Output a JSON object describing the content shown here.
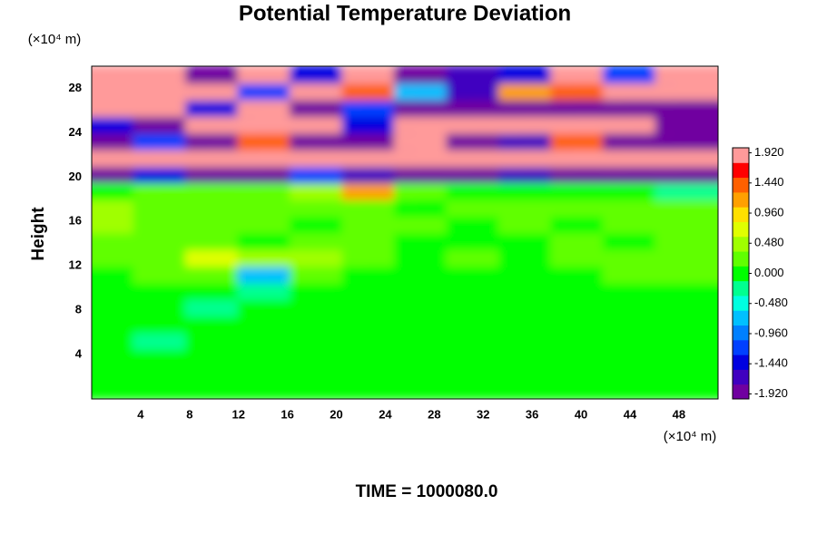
{
  "chart_data": {
    "type": "heatmap",
    "title": "Potential Temperature Deviation",
    "y_unit": "(×10⁴ m)",
    "x_unit": "(×10⁴ m)",
    "ylabel": "Height",
    "footer": "TIME = 1000080.0",
    "xlim": [
      0,
      51.2
    ],
    "ylim": [
      0,
      30
    ],
    "xticks": [
      4,
      8,
      12,
      16,
      20,
      24,
      28,
      32,
      36,
      40,
      44,
      48
    ],
    "yticks": [
      4,
      8,
      12,
      16,
      20,
      24,
      28
    ],
    "x": [
      2.13,
      6.4,
      10.67,
      14.93,
      19.2,
      23.47,
      27.73,
      32,
      36.27,
      40.53,
      44.8,
      49.07
    ],
    "y": [
      0.75,
      2.25,
      3.75,
      5.25,
      6.75,
      8.25,
      9.75,
      11.25,
      12.75,
      14.25,
      15.75,
      17.25,
      18.75,
      20.25,
      21.75,
      23.25,
      24.75,
      26.25,
      27.75,
      29.25
    ],
    "z": [
      [
        0,
        -0.1,
        0,
        0.05,
        0,
        -0.1,
        0,
        0,
        -0.05,
        0,
        0.1,
        0
      ],
      [
        0.05,
        0,
        -0.1,
        0,
        0,
        0,
        -0.1,
        0,
        0,
        0.05,
        0,
        0
      ],
      [
        0,
        0,
        0,
        -0.1,
        0,
        0.05,
        0,
        -0.1,
        0,
        0,
        0,
        0.05
      ],
      [
        0,
        -0.15,
        0,
        0,
        0.05,
        0,
        0,
        0,
        -0.1,
        0,
        0.05,
        0
      ],
      [
        0.05,
        0,
        0,
        -0.1,
        0,
        0,
        0.05,
        0,
        0,
        -0.1,
        0,
        0
      ],
      [
        0,
        0,
        -0.2,
        0,
        0,
        0.1,
        0,
        -0.1,
        0,
        0,
        0,
        0.05
      ],
      [
        0,
        0.05,
        0,
        -0.3,
        0.1,
        0,
        0,
        0,
        0,
        0.05,
        0,
        0
      ],
      [
        0.1,
        0.2,
        0.3,
        -0.6,
        0.2,
        0,
        0.1,
        0,
        0.05,
        0.1,
        0.3,
        0.2
      ],
      [
        0.2,
        0.3,
        0.6,
        0.4,
        0.5,
        0.2,
        0.1,
        0.2,
        0.1,
        0.2,
        0.2,
        0.3
      ],
      [
        0.3,
        0.2,
        0.2,
        0.1,
        0.3,
        0.2,
        0.1,
        -0.1,
        0.1,
        0.2,
        0.1,
        0.2
      ],
      [
        0.4,
        0.3,
        0.2,
        0.2,
        0.1,
        0.2,
        0.3,
        0.1,
        0.2,
        0.1,
        0.2,
        0.3
      ],
      [
        0.5,
        0.3,
        0.2,
        0.3,
        0.2,
        0.2,
        0.1,
        0.2,
        0.3,
        0.2,
        0.2,
        0.2
      ],
      [
        0.1,
        0.2,
        0.3,
        0.2,
        0.5,
        1.2,
        0.3,
        0.1,
        0.1,
        0,
        -0.1,
        -0.2
      ],
      [
        -1.9,
        -1.5,
        -1.9,
        -1.8,
        -1.2,
        -1.6,
        -1.8,
        -1.9,
        -1.7,
        -1.9,
        -1.8,
        -1.9
      ],
      [
        2,
        2,
        1.9,
        2,
        2,
        1.8,
        2,
        1.9,
        2,
        2,
        1.9,
        2
      ],
      [
        -1.9,
        -1.2,
        -1.9,
        1.5,
        -1.9,
        -1.9,
        1.9,
        -1.9,
        -1.6,
        1.5,
        -1.9,
        -1.9
      ],
      [
        -1.5,
        -1.9,
        1.9,
        2,
        1.9,
        -1.5,
        2,
        2,
        2,
        1.9,
        2,
        -1.9
      ],
      [
        2,
        1.9,
        -1.5,
        2,
        -1.9,
        -1.2,
        -1.9,
        -1.9,
        -1.9,
        -1.9,
        -1.9,
        -2
      ],
      [
        2,
        2,
        1.8,
        -1.2,
        1.9,
        1.5,
        -0.8,
        -1.6,
        1.2,
        1.5,
        2,
        1.9
      ],
      [
        2,
        1.9,
        -1.8,
        2,
        -1.5,
        1.8,
        -1.9,
        -1.6,
        -1.4,
        1.8,
        -1.2,
        2
      ]
    ],
    "clim": [
      -2,
      2
    ],
    "colormap": [
      "#7000a0",
      "#4000c0",
      "#0000e0",
      "#0040ff",
      "#0080ff",
      "#00c0ff",
      "#00ffe0",
      "#00ff90",
      "#00ff00",
      "#60ff00",
      "#a0ff00",
      "#e0ff00",
      "#ffe000",
      "#ffa000",
      "#ff6000",
      "#ff0000",
      "#ff9a9a"
    ],
    "cticks": [
      {
        "value": 1.92,
        "label": "1.920"
      },
      {
        "value": 1.44,
        "label": "1.440"
      },
      {
        "value": 0.96,
        "label": "0.960"
      },
      {
        "value": 0.48,
        "label": "0.480"
      },
      {
        "value": 0,
        "label": "0.000"
      },
      {
        "value": -0.48,
        "label": "-0.480"
      },
      {
        "value": -0.96,
        "label": "-0.960"
      },
      {
        "value": -1.44,
        "label": "-1.440"
      },
      {
        "value": -1.92,
        "label": "-1.920"
      }
    ]
  }
}
